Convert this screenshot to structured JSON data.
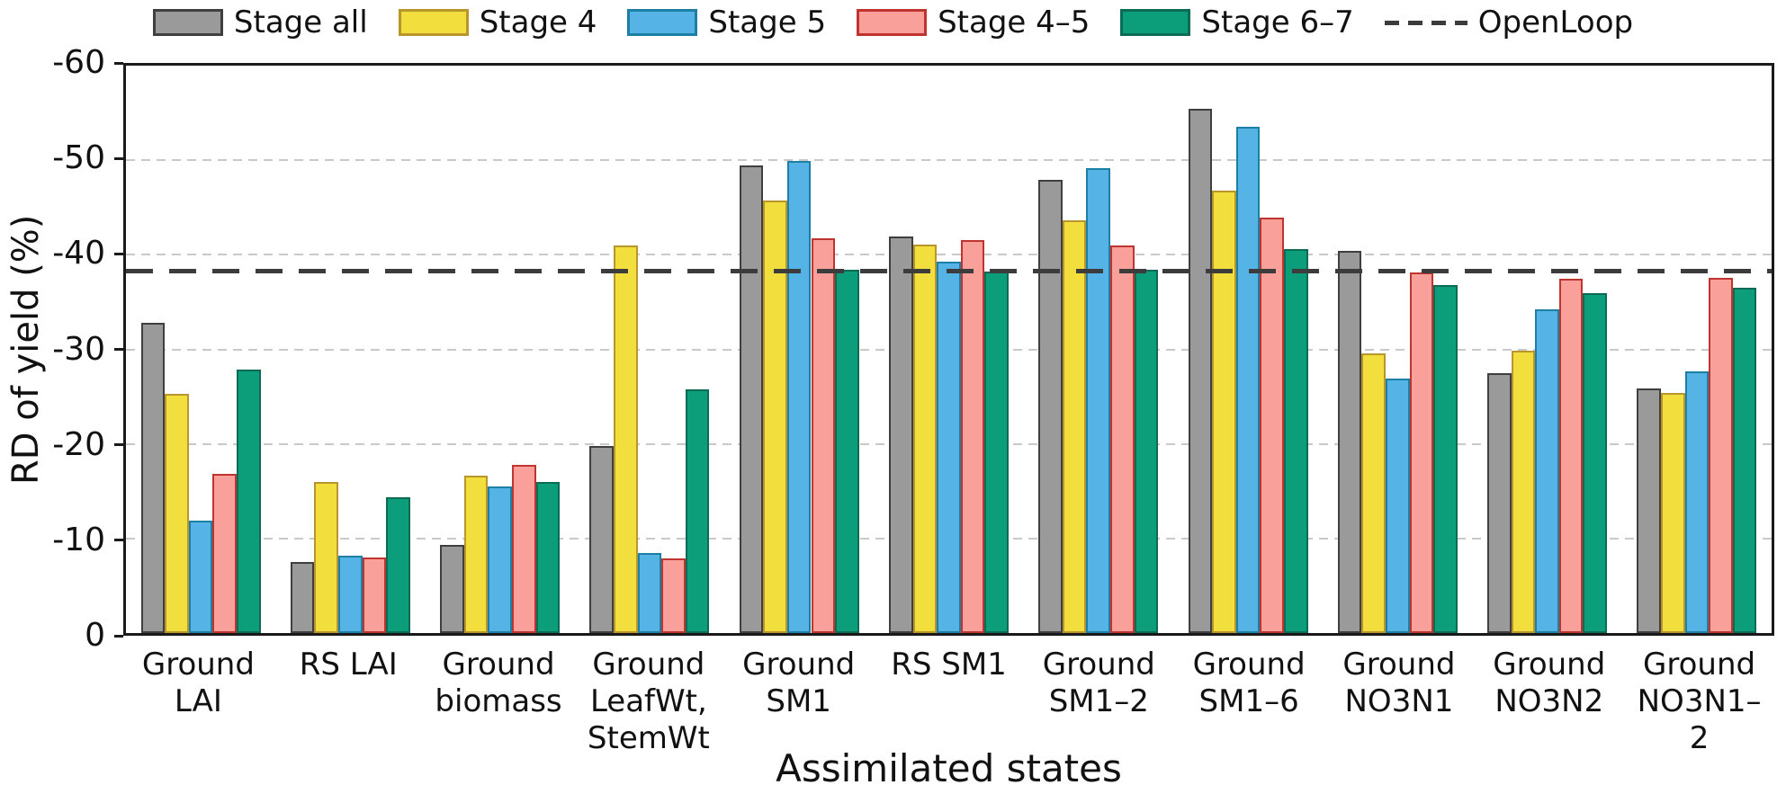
{
  "chart_data": {
    "type": "bar",
    "title": "",
    "xlabel": "Assimilated states",
    "ylabel": "RD of yield (%)",
    "ylim": [
      0,
      -60
    ],
    "yticks": [
      0,
      -10,
      -20,
      -30,
      -40,
      -50,
      -60
    ],
    "grid": "horizontal dashed gridlines at -10 to -50",
    "legend_position": "top",
    "categories": [
      "Ground LAI",
      "RS LAI",
      "Ground biomass",
      "Ground LeafWt, StemWt",
      "Ground SM1",
      "RS SM1",
      "Ground SM1–2",
      "Ground SM1–6",
      "Ground NO3N1",
      "Ground NO3N2",
      "Ground NO3N1–2"
    ],
    "category_label_lines": [
      [
        "Ground",
        "LAI"
      ],
      [
        "RS LAI"
      ],
      [
        "Ground",
        "biomass"
      ],
      [
        "Ground",
        "LeafWt,",
        "StemWt"
      ],
      [
        "Ground",
        "SM1"
      ],
      [
        "RS SM1"
      ],
      [
        "Ground",
        "SM1–2"
      ],
      [
        "Ground",
        "SM1–6"
      ],
      [
        "Ground",
        "NO3N1"
      ],
      [
        "Ground",
        "NO3N2"
      ],
      [
        "Ground",
        "NO3N1–2"
      ]
    ],
    "series": [
      {
        "name": "Stage all",
        "fill": "#9A9A9A",
        "edge": "#3F3F3F",
        "values": [
          -32.8,
          -7.5,
          -9.3,
          -19.8,
          -49.4,
          -41.9,
          -47.9,
          -55.4,
          -40.4,
          -27.5,
          -25.9
        ]
      },
      {
        "name": "Stage 4",
        "fill": "#F2DF3E",
        "edge": "#B8962C",
        "values": [
          -25.3,
          -16.0,
          -16.6,
          -41.0,
          -45.7,
          -41.1,
          -43.6,
          -46.8,
          -29.6,
          -29.9,
          -25.4
        ]
      },
      {
        "name": "Stage 5",
        "fill": "#55B4E5",
        "edge": "#1D7FA3",
        "values": [
          -11.9,
          -8.2,
          -15.5,
          -8.5,
          -49.9,
          -39.3,
          -49.2,
          -53.5,
          -26.9,
          -34.2,
          -27.7
        ]
      },
      {
        "name": "Stage 4–5",
        "fill": "#F9A09A",
        "edge": "#C0342F",
        "values": [
          -16.8,
          -8.0,
          -17.8,
          -7.9,
          -41.7,
          -41.6,
          -41.0,
          -43.9,
          -38.1,
          -37.5,
          -37.6
        ]
      },
      {
        "name": "Stage 6–7",
        "fill": "#0C9E7B",
        "edge": "#0B6B55",
        "values": [
          -27.9,
          -14.4,
          -16.0,
          -25.8,
          -38.4,
          -38.2,
          -38.4,
          -40.6,
          -36.8,
          -35.9,
          -36.5
        ]
      }
    ],
    "reference_line": {
      "name": "OpenLoop",
      "value": -38.3,
      "color": "#3C3C3C",
      "style": "dashed"
    },
    "colors": {
      "axis": "#1a1a1a",
      "gridline": "#C9C9C9",
      "background": "#FFFFFF"
    }
  }
}
